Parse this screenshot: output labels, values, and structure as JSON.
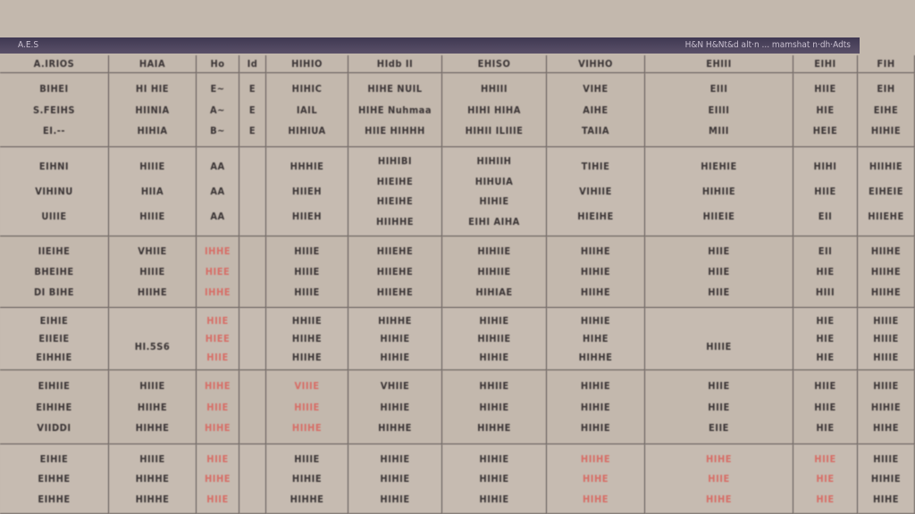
{
  "header_bar": {
    "left": "A.E.S",
    "right": "H&N H&Nt&d alt·n ... mamshat n·dh·Adts",
    "color": "#3f3852"
  },
  "colors": {
    "background": "#c3b8ad",
    "text": "#3b3536",
    "highlight": "#d76d66"
  },
  "column_headers": [
    "A.IRIOS",
    "HAIA",
    "Ho",
    "Id",
    "HIHIO",
    "HIdb II",
    "EHISO",
    "VIHHO",
    "EHIII",
    "EIHI",
    "FIH"
  ],
  "rows": [
    [
      [
        "BIHEI",
        "S.FEIHS",
        "EI.--"
      ],
      [
        "HI HIE",
        "HIINIA",
        "HIHIA"
      ],
      [
        "E~",
        "A~",
        "B~"
      ],
      [
        "E",
        "E",
        "E"
      ],
      [
        "HIHIC",
        "IAIL",
        "HIHIUA"
      ],
      [
        "HIHE NUIL",
        "HIHE Nuhmaa",
        "HIIE HIHHH"
      ],
      [
        "HHIII",
        "HIHI HIHA",
        "HIHII ILIIIE"
      ],
      [
        "VIHE",
        "AIHE",
        "TAIIA"
      ],
      [
        "EIII",
        "EIIII",
        "MIII"
      ],
      [
        "HIIE",
        "HIE",
        "HEIE"
      ],
      [
        "EIH",
        "EIHE",
        "HIHIE"
      ]
    ],
    [
      [
        "EIHNI",
        "VIHINU",
        "UIIIE"
      ],
      [
        "HIIIE",
        "HIIA",
        "HIIIE"
      ],
      [
        "AA",
        "AA",
        "AA"
      ],
      [
        "",
        ""
      ],
      [
        "HHHIE",
        "HIIEH",
        "HIIEH"
      ],
      [
        "HIHIBI",
        "HIEIHE",
        "HIEIHE",
        "HIIHHE"
      ],
      [
        "HIHIIH",
        "HIHUIA",
        "HIHIE",
        "EIHI AIHA"
      ],
      [
        "TIHIE",
        "VIHIIE",
        "HIEIHE"
      ],
      [
        "HIEHIE",
        "HIHIIE",
        "HIIEIE"
      ],
      [
        "HIHI",
        "HIIE",
        "EII"
      ],
      [
        "HIIHIE",
        "EIHEIE",
        "HIIEHE"
      ]
    ],
    [
      [
        "IIEIHE",
        "BHEIHE",
        "DI BIHE"
      ],
      [
        "VHIIE",
        "HIIIE",
        "HIIHE"
      ],
      [
        "IHHE",
        "HIEE",
        "IHHE"
      ],
      [
        "",
        ""
      ],
      [
        "HIIIE",
        "HIIIE",
        "HIIIE"
      ],
      [
        "HIIEHE",
        "HIIEHE",
        "HIIEHE"
      ],
      [
        "HIHIIE",
        "HIHIIE",
        "HIHIAE"
      ],
      [
        "HIIHE",
        "HIHIE",
        "HIIHE"
      ],
      [
        "HIIE",
        "HIIE",
        "HIIE"
      ],
      [
        "EII",
        "HIE",
        "HIII"
      ],
      [
        "HIIHE",
        "HIIHE",
        "HIIHE"
      ]
    ],
    [
      [
        "EIHIE",
        "EIIEIE",
        "EIHHIE"
      ],
      [
        "",
        "HI.5S6"
      ],
      [
        "HIIE",
        "HIEE",
        "HIIE"
      ],
      [
        "",
        ""
      ],
      [
        "HHIIE",
        "HIIHE",
        "HIIHE"
      ],
      [
        "HIHHE",
        "HIHIE",
        "HIHIE"
      ],
      [
        "HIHIE",
        "HIHIIE",
        "HIHIE"
      ],
      [
        "HIHIE",
        "HIHE",
        "HIHHE"
      ],
      [
        "",
        "HIIIE"
      ],
      [
        "HIE",
        "HIE",
        "HIE"
      ],
      [
        "HIIIE",
        "HIIIE",
        "HIIIE"
      ]
    ],
    [
      [
        "EIHIIE",
        "EIHIHE",
        "VIIDDI"
      ],
      [
        "HIIIE",
        "HIIHE",
        "HIHHE"
      ],
      [
        "HIHE",
        "HIIE",
        "HIHE"
      ],
      [
        "",
        ""
      ],
      [
        "VIIIE",
        "HIIIE",
        "HIIHE"
      ],
      [
        "VHIIE",
        "HIHIE",
        "HIHHE"
      ],
      [
        "HHIIE",
        "HIHIE",
        "HIHHE"
      ],
      [
        "HIHIE",
        "HIHIE",
        "HIHIE"
      ],
      [
        "HIIE",
        "HIIE",
        "EIIE"
      ],
      [
        "HIIE",
        "HIIE",
        "HIE"
      ],
      [
        "HIIIE",
        "HIHIE",
        "HIHE"
      ]
    ],
    [
      [
        "EIHIE",
        "EIHHE",
        "EIHHE"
      ],
      [
        "HIIIE",
        "HIHHE",
        "HIHHE"
      ],
      [
        "HIIE",
        "HIHE",
        "HIIE"
      ],
      [
        "",
        ""
      ],
      [
        "HIIIE",
        "HIHIE",
        "HIHHE"
      ],
      [
        "HIHIE",
        "HIHIE",
        "HIHIE"
      ],
      [
        "HIHIE",
        "HIHIE",
        "HIHIE"
      ],
      [
        "HIIHE",
        "HIHE",
        "HIHE"
      ],
      [
        "HIHE",
        "HIIE",
        "HIHE"
      ],
      [
        "HIIE",
        "HIE",
        "HIE"
      ],
      [
        "HIIIE",
        "HIHIE",
        "HIHE"
      ]
    ]
  ]
}
